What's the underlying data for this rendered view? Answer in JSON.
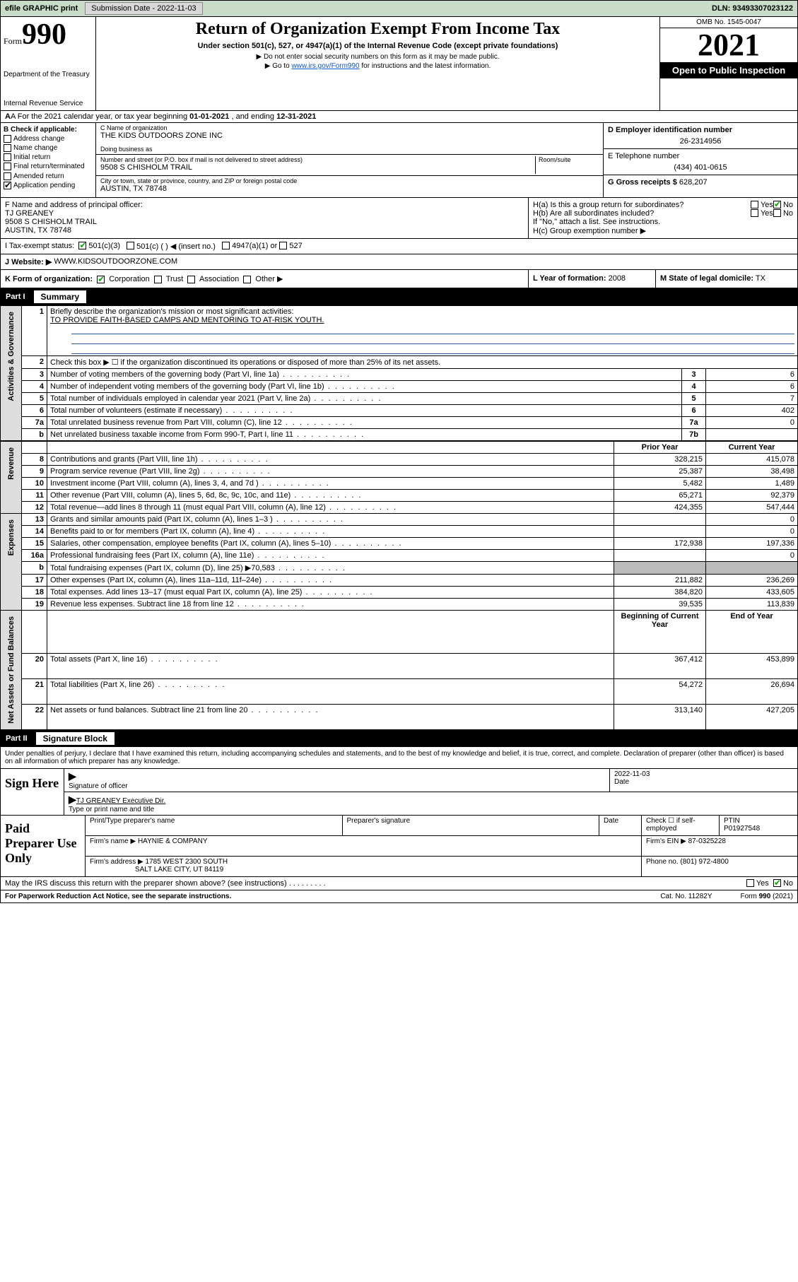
{
  "colors": {
    "header_bg": "#c8dcc8",
    "black": "#000000",
    "link": "#1155cc",
    "shade": "#bbbbbb",
    "rule": "#2b5aa0"
  },
  "header_bar": {
    "efile": "efile GRAPHIC print",
    "sub_lbl": "Submission Date - 2022-11-03",
    "dln": "DLN: 93493307023122"
  },
  "top": {
    "form_word": "Form",
    "form_num": "990",
    "title": "Return of Organization Exempt From Income Tax",
    "subtitle": "Under section 501(c), 527, or 4947(a)(1) of the Internal Revenue Code (except private foundations)",
    "note1": "▶ Do not enter social security numbers on this form as it may be made public.",
    "note2_pre": "▶ Go to ",
    "note2_link": "www.irs.gov/Form990",
    "note2_post": " for instructions and the latest information.",
    "dept": "Department of the Treasury",
    "irs": "Internal Revenue Service",
    "omb": "OMB No. 1545-0047",
    "year": "2021",
    "open": "Open to Public Inspection"
  },
  "rowA": {
    "pre": "A For the 2021 calendar year, or tax year beginning ",
    "d1": "01-01-2021",
    "mid": " , and ending ",
    "d2": "12-31-2021"
  },
  "boxB": {
    "title": "B Check if applicable:",
    "items": [
      "Address change",
      "Name change",
      "Initial return",
      "Final return/terminated",
      "Amended return",
      "Application pending"
    ]
  },
  "boxC": {
    "name_lbl": "C Name of organization",
    "name": "THE KIDS OUTDOORS ZONE INC",
    "dba_lbl": "Doing business as",
    "dba": "",
    "addr_lbl": "Number and street (or P.O. box if mail is not delivered to street address)",
    "room_lbl": "Room/suite",
    "addr": "9508 S CHISHOLM TRAIL",
    "city_lbl": "City or town, state or province, country, and ZIP or foreign postal code",
    "city": "AUSTIN, TX  78748"
  },
  "boxD": {
    "lbl": "D Employer identification number",
    "val": "26-2314956"
  },
  "boxE": {
    "lbl": "E Telephone number",
    "val": "(434) 401-0615"
  },
  "boxG": {
    "lbl": "G Gross receipts $",
    "val": "628,207"
  },
  "boxF": {
    "lbl": "F  Name and address of principal officer:",
    "name": "TJ GREANEY",
    "addr": "9508 S CHISHOLM TRAIL",
    "city": "AUSTIN, TX  78748"
  },
  "boxH": {
    "a": "H(a)  Is this a group return for subordinates?",
    "a_yes": "Yes",
    "a_no": "No",
    "b": "H(b)  Are all subordinates included?",
    "b_yes": "Yes",
    "b_no": "No",
    "b_note": "If \"No,\" attach a list. See instructions.",
    "c": "H(c)  Group exemption number ▶"
  },
  "rowI": {
    "lbl": "I     Tax-exempt status:",
    "o1": "501(c)(3)",
    "o2": "501(c) (  ) ◀ (insert no.)",
    "o3": "4947(a)(1) or",
    "o4": "527"
  },
  "rowJ": {
    "lbl": "J     Website: ▶",
    "val": "WWW.KIDSOUTDOORZONE.COM"
  },
  "rowK": {
    "lbl": "K Form of organization:",
    "o1": "Corporation",
    "o2": "Trust",
    "o3": "Association",
    "o4": "Other ▶"
  },
  "rowL": {
    "lbl": "L Year of formation:",
    "val": "2008"
  },
  "rowM": {
    "lbl": "M State of legal domicile:",
    "val": "TX"
  },
  "part1": {
    "num": "Part I",
    "title": "Summary"
  },
  "summary": {
    "q1": "Briefly describe the organization's mission or most significant activities:",
    "mission": "TO PROVIDE FAITH-BASED CAMPS AND MENTORING TO AT-RISK YOUTH.",
    "q2": "Check this box ▶ ☐  if the organization discontinued its operations or disposed of more than 25% of its net assets.",
    "rows_gov": [
      {
        "n": "3",
        "d": "Number of voting members of the governing body (Part VI, line 1a)",
        "k": "3",
        "v": "6"
      },
      {
        "n": "4",
        "d": "Number of independent voting members of the governing body (Part VI, line 1b)",
        "k": "4",
        "v": "6"
      },
      {
        "n": "5",
        "d": "Total number of individuals employed in calendar year 2021 (Part V, line 2a)",
        "k": "5",
        "v": "7"
      },
      {
        "n": "6",
        "d": "Total number of volunteers (estimate if necessary)",
        "k": "6",
        "v": "402"
      },
      {
        "n": "7a",
        "d": "Total unrelated business revenue from Part VIII, column (C), line 12",
        "k": "7a",
        "v": "0"
      },
      {
        "n": "b",
        "d": "Net unrelated business taxable income from Form 990-T, Part I, line 11",
        "k": "7b",
        "v": ""
      }
    ],
    "col_hdr": {
      "prior": "Prior Year",
      "current": "Current Year",
      "boy": "Beginning of Current Year",
      "eoy": "End of Year"
    },
    "rows_rev": [
      {
        "n": "8",
        "d": "Contributions and grants (Part VIII, line 1h)",
        "p": "328,215",
        "c": "415,078"
      },
      {
        "n": "9",
        "d": "Program service revenue (Part VIII, line 2g)",
        "p": "25,387",
        "c": "38,498"
      },
      {
        "n": "10",
        "d": "Investment income (Part VIII, column (A), lines 3, 4, and 7d )",
        "p": "5,482",
        "c": "1,489"
      },
      {
        "n": "11",
        "d": "Other revenue (Part VIII, column (A), lines 5, 6d, 8c, 9c, 10c, and 11e)",
        "p": "65,271",
        "c": "92,379"
      },
      {
        "n": "12",
        "d": "Total revenue—add lines 8 through 11 (must equal Part VIII, column (A), line 12)",
        "p": "424,355",
        "c": "547,444"
      }
    ],
    "rows_exp": [
      {
        "n": "13",
        "d": "Grants and similar amounts paid (Part IX, column (A), lines 1–3 )",
        "p": "",
        "c": "0"
      },
      {
        "n": "14",
        "d": "Benefits paid to or for members (Part IX, column (A), line 4)",
        "p": "",
        "c": "0"
      },
      {
        "n": "15",
        "d": "Salaries, other compensation, employee benefits (Part IX, column (A), lines 5–10)",
        "p": "172,938",
        "c": "197,336"
      },
      {
        "n": "16a",
        "d": "Professional fundraising fees (Part IX, column (A), line 11e)",
        "p": "",
        "c": "0"
      },
      {
        "n": "b",
        "d": "Total fundraising expenses (Part IX, column (D), line 25) ▶70,583",
        "p": "SHADE",
        "c": "SHADE"
      },
      {
        "n": "17",
        "d": "Other expenses (Part IX, column (A), lines 11a–11d, 11f–24e)",
        "p": "211,882",
        "c": "236,269"
      },
      {
        "n": "18",
        "d": "Total expenses. Add lines 13–17 (must equal Part IX, column (A), line 25)",
        "p": "384,820",
        "c": "433,605"
      },
      {
        "n": "19",
        "d": "Revenue less expenses. Subtract line 18 from line 12",
        "p": "39,535",
        "c": "113,839"
      }
    ],
    "rows_net": [
      {
        "n": "20",
        "d": "Total assets (Part X, line 16)",
        "p": "367,412",
        "c": "453,899"
      },
      {
        "n": "21",
        "d": "Total liabilities (Part X, line 26)",
        "p": "54,272",
        "c": "26,694"
      },
      {
        "n": "22",
        "d": "Net assets or fund balances. Subtract line 21 from line 20",
        "p": "313,140",
        "c": "427,205"
      }
    ],
    "vtabs": {
      "gov": "Activities & Governance",
      "rev": "Revenue",
      "exp": "Expenses",
      "net": "Net Assets or Fund Balances"
    }
  },
  "part2": {
    "num": "Part II",
    "title": "Signature Block"
  },
  "sig": {
    "intro": "Under penalties of perjury, I declare that I have examined this return, including accompanying schedules and statements, and to the best of my knowledge and belief, it is true, correct, and complete. Declaration of preparer (other than officer) is based on all information of which preparer has any knowledge.",
    "sign_here": "Sign Here",
    "sig_officer": "Signature of officer",
    "date_lbl": "Date",
    "date": "2022-11-03",
    "name_title": "TJ GREANEY Executive Dir.",
    "name_title_lbl": "Type or print name and title",
    "paid": "Paid Preparer Use Only",
    "pt_name_lbl": "Print/Type preparer's name",
    "prep_sig_lbl": "Preparer's signature",
    "check_lbl": "Check ☐ if self-employed",
    "ptin_lbl": "PTIN",
    "ptin": "P01927548",
    "firm_name_lbl": "Firm's name    ▶",
    "firm_name": "HAYNIE & COMPANY",
    "firm_ein_lbl": "Firm's EIN ▶",
    "firm_ein": "87-0325228",
    "firm_addr_lbl": "Firm's address ▶",
    "firm_addr1": "1785 WEST 2300 SOUTH",
    "firm_addr2": "SALT LAKE CITY, UT  84119",
    "phone_lbl": "Phone no.",
    "phone": "(801) 972-4800",
    "may_irs": "May the IRS discuss this return with the preparer shown above? (see instructions)",
    "yes": "Yes",
    "no": "No"
  },
  "footer": {
    "pra": "For Paperwork Reduction Act Notice, see the separate instructions.",
    "cat": "Cat. No. 11282Y",
    "form": "Form 990 (2021)"
  }
}
